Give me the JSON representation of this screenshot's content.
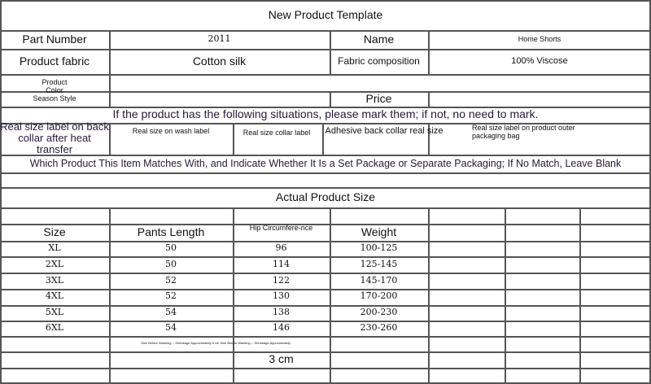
{
  "title": "New Product Template",
  "info": {
    "part_number_label": "Part Number",
    "part_number": "2011",
    "name_label": "Name",
    "name": "Home Shorts",
    "fabric_label": "Product fabric",
    "fabric": "Cotton silk",
    "composition_label": "Fabric composition",
    "composition": "100% Viscose",
    "color_label": [
      "Product",
      "Color",
      "Season Style"
    ],
    "price_label": "Price"
  },
  "notice": "If the product has the following situations, please mark them; if not, no need to mark.",
  "labels": {
    "heat_transfer": "Real size label on back collar after heat transfer",
    "wash_label": "Real size on wash label",
    "collar_label": "Real size collar label",
    "adhesive": "Adhesive back collar real size",
    "packaging": "Real size label on product outer packaging bag"
  },
  "match_note": "Which Product This Item Matches With, and Indicate Whether It Is a Set Package or Separate Packaging; If No Match, Leave Blank",
  "size_title": "Actual Product Size",
  "size_table": {
    "headers": [
      "Size",
      "Pants Length",
      "Hip Circumfere-nce",
      "Weight"
    ],
    "rows": [
      [
        "XL",
        "50",
        "96",
        "100-125"
      ],
      [
        "2XL",
        "50",
        "114",
        "125-145"
      ],
      [
        "3XL",
        "52",
        "122",
        "145-170"
      ],
      [
        "4XL",
        "52",
        "130",
        "170-200"
      ],
      [
        "5XL",
        "54",
        "138",
        "200-230"
      ],
      [
        "6XL",
        "54",
        "146",
        "230-260"
      ]
    ]
  },
  "shrinkage_note": "Size Before Washing -- Shrinkage Approximately 8 cm Size Before Washing -- Shrinkage Approximately",
  "shrinkage_value": "3 cm"
}
